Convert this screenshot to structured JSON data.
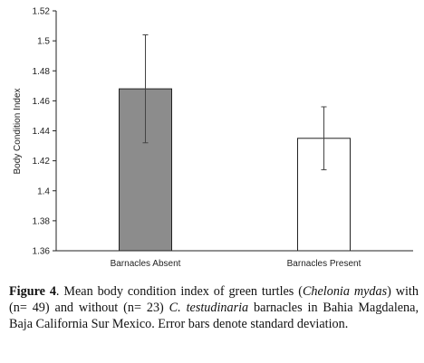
{
  "chart_data": {
    "type": "bar",
    "categories": [
      "Barnacles Absent",
      "Barnacles Present"
    ],
    "values": [
      1.468,
      1.435
    ],
    "error": [
      0.036,
      0.021
    ],
    "bar_colors": [
      "#8c8c8c",
      "#ffffff"
    ],
    "bar_edge_color": "#222222",
    "ylabel": "Body Condition Index",
    "ylim": [
      1.36,
      1.52
    ],
    "yticks": [
      1.36,
      1.38,
      1.4,
      1.42,
      1.44,
      1.46,
      1.48,
      1.5,
      1.52
    ],
    "ytick_labels": [
      "1.36",
      "1.38",
      "1.4",
      "1.42",
      "1.44",
      "1.46",
      "1.48",
      "1.5",
      "1.52"
    ],
    "grid": false,
    "legend": "none"
  },
  "caption": {
    "label": "Figure 4",
    "t1": ". Mean body condition index of green turtles (",
    "species1": "Chelonia mydas",
    "t2": ") with (n= 49) and without (n= 23) ",
    "species2": "C. testudinaria",
    "t3": " barnacles in Bahia Magdalena, Baja California Sur Mexico. Error bars denote standard deviation."
  }
}
